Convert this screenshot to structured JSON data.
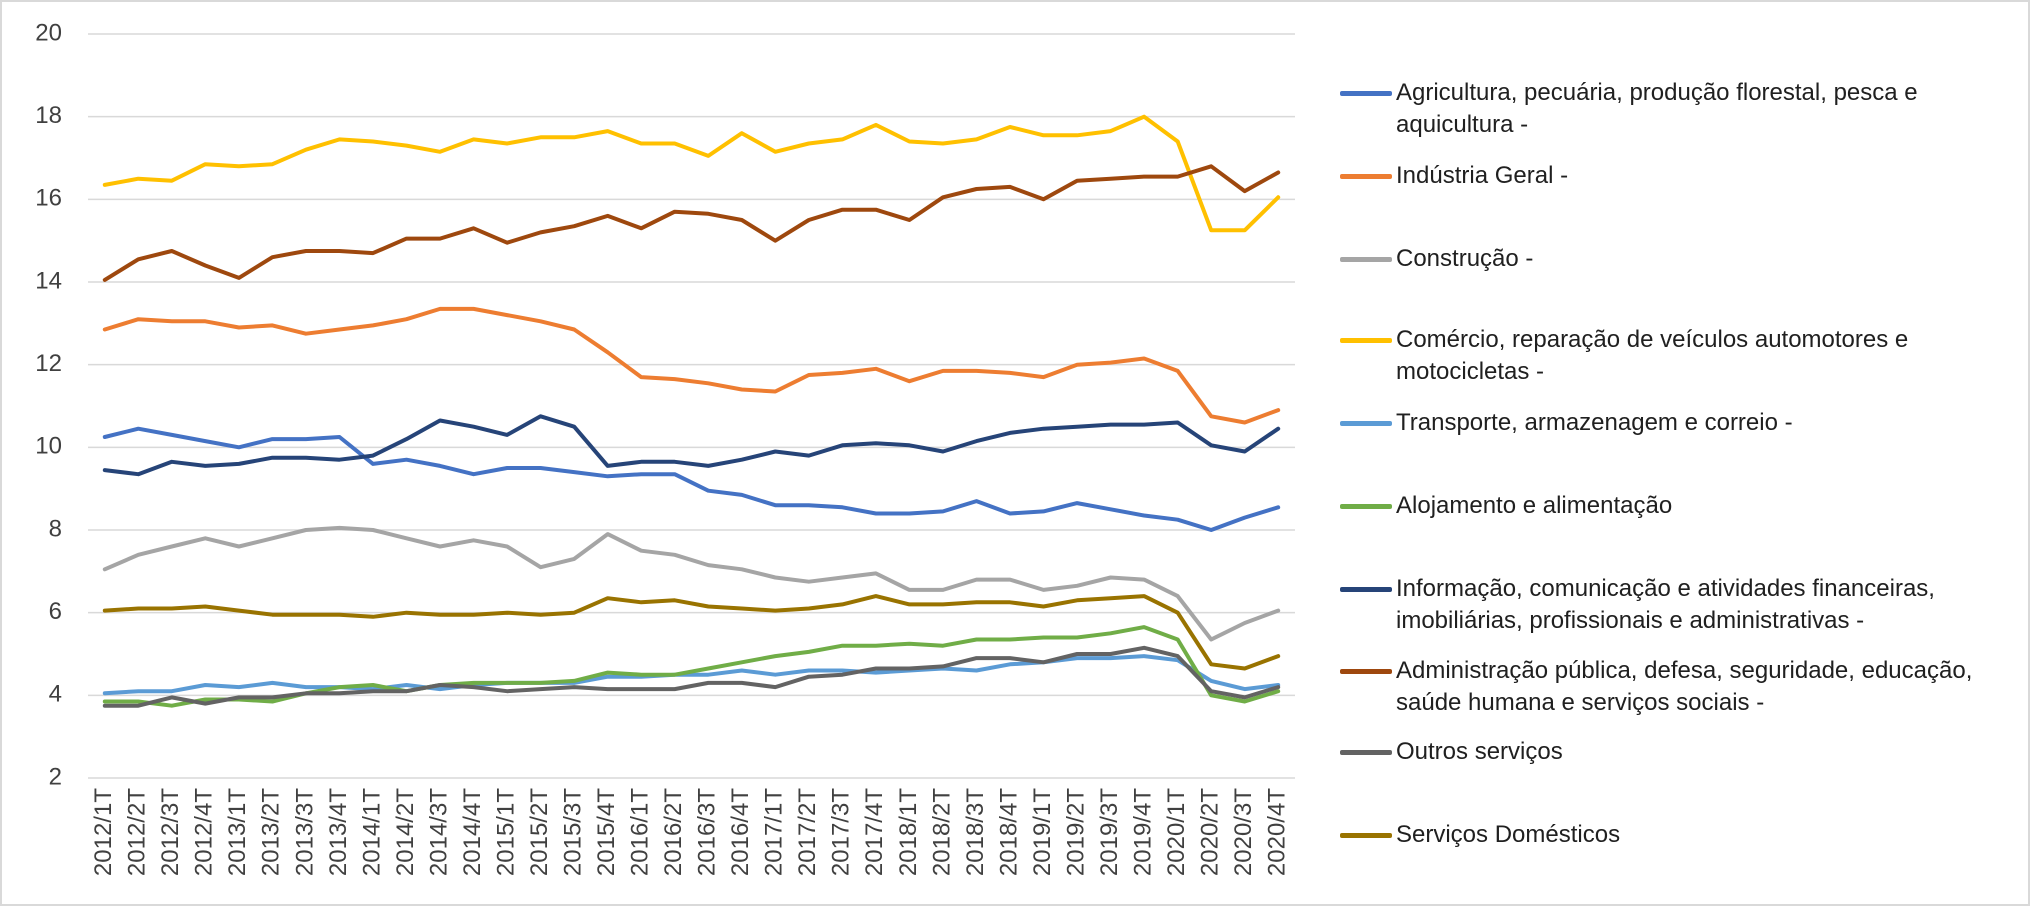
{
  "chart_data": {
    "type": "line",
    "categories": [
      "2012/1T",
      "2012/2T",
      "2012/3T",
      "2012/4T",
      "2013/1T",
      "2013/2T",
      "2013/3T",
      "2013/4T",
      "2014/1T",
      "2014/2T",
      "2014/3T",
      "2014/4T",
      "2015/1T",
      "2015/2T",
      "2015/3T",
      "2015/4T",
      "2016/1T",
      "2016/2T",
      "2016/3T",
      "2016/4T",
      "2017/1T",
      "2017/2T",
      "2017/3T",
      "2017/4T",
      "2018/1T",
      "2018/2T",
      "2018/3T",
      "2018/4T",
      "2019/1T",
      "2019/2T",
      "2019/3T",
      "2019/4T",
      "2020/1T",
      "2020/2T",
      "2020/3T",
      "2020/4T"
    ],
    "ylim": [
      2,
      20
    ],
    "yticks": [
      2,
      4,
      6,
      8,
      10,
      12,
      14,
      16,
      18,
      20
    ],
    "grid": true,
    "series": [
      {
        "name": "Agricultura, pecuária, produção florestal, pesca e aquicultura -",
        "color": "#4472c4",
        "values": [
          10.25,
          10.45,
          10.3,
          10.15,
          10.0,
          10.2,
          10.2,
          10.25,
          9.6,
          9.7,
          9.55,
          9.35,
          9.5,
          9.5,
          9.4,
          9.3,
          9.35,
          9.35,
          8.95,
          8.85,
          8.6,
          8.6,
          8.55,
          8.4,
          8.4,
          8.45,
          8.7,
          8.4,
          8.45,
          8.65,
          8.5,
          8.35,
          8.25,
          8.0,
          8.3,
          8.55
        ]
      },
      {
        "name": "Indústria Geral -",
        "color": "#ed7d31",
        "values": [
          12.85,
          13.1,
          13.05,
          13.05,
          12.9,
          12.95,
          12.75,
          12.85,
          12.95,
          13.1,
          13.35,
          13.35,
          13.2,
          13.05,
          12.85,
          12.3,
          11.7,
          11.65,
          11.55,
          11.4,
          11.35,
          11.75,
          11.8,
          11.9,
          11.6,
          11.85,
          11.85,
          11.8,
          11.7,
          12.0,
          12.05,
          12.15,
          11.85,
          10.75,
          10.6,
          10.9
        ]
      },
      {
        "name": "Construção -",
        "color": "#a5a5a5",
        "values": [
          7.05,
          7.4,
          7.6,
          7.8,
          7.6,
          7.8,
          8.0,
          8.05,
          8.0,
          7.8,
          7.6,
          7.75,
          7.6,
          7.1,
          7.3,
          7.9,
          7.5,
          7.4,
          7.15,
          7.05,
          6.85,
          6.75,
          6.85,
          6.95,
          6.55,
          6.55,
          6.8,
          6.8,
          6.55,
          6.65,
          6.85,
          6.8,
          6.4,
          5.35,
          5.75,
          6.05
        ]
      },
      {
        "name": "Comércio, reparação de veículos automotores e motocicletas -",
        "color": "#ffc000",
        "values": [
          16.35,
          16.5,
          16.45,
          16.85,
          16.8,
          16.85,
          17.2,
          17.45,
          17.4,
          17.3,
          17.15,
          17.45,
          17.35,
          17.5,
          17.5,
          17.65,
          17.35,
          17.35,
          17.05,
          17.6,
          17.15,
          17.35,
          17.45,
          17.8,
          17.4,
          17.35,
          17.45,
          17.75,
          17.55,
          17.55,
          17.65,
          18.0,
          17.4,
          15.25,
          15.25,
          16.05
        ]
      },
      {
        "name": "Transporte, armazenagem e correio -",
        "color": "#5b9bd5",
        "values": [
          4.05,
          4.1,
          4.1,
          4.25,
          4.2,
          4.3,
          4.2,
          4.2,
          4.15,
          4.25,
          4.15,
          4.25,
          4.3,
          4.3,
          4.3,
          4.45,
          4.45,
          4.5,
          4.5,
          4.6,
          4.5,
          4.6,
          4.6,
          4.55,
          4.6,
          4.65,
          4.6,
          4.75,
          4.8,
          4.9,
          4.9,
          4.95,
          4.85,
          4.35,
          4.15,
          4.25
        ]
      },
      {
        "name": "Alojamento e alimentação",
        "color": "#70ad47",
        "values": [
          3.85,
          3.85,
          3.75,
          3.9,
          3.9,
          3.85,
          4.05,
          4.2,
          4.25,
          4.1,
          4.25,
          4.3,
          4.3,
          4.3,
          4.35,
          4.55,
          4.5,
          4.5,
          4.65,
          4.8,
          4.95,
          5.05,
          5.2,
          5.2,
          5.25,
          5.2,
          5.35,
          5.35,
          5.4,
          5.4,
          5.5,
          5.65,
          5.35,
          4.0,
          3.85,
          4.1
        ]
      },
      {
        "name": "Informação, comunicação e atividades financeiras, imobiliárias, profissionais e administrativas -",
        "color": "#264478",
        "values": [
          9.45,
          9.35,
          9.65,
          9.55,
          9.6,
          9.75,
          9.75,
          9.7,
          9.8,
          10.2,
          10.65,
          10.5,
          10.3,
          10.75,
          10.5,
          9.55,
          9.65,
          9.65,
          9.55,
          9.7,
          9.9,
          9.8,
          10.05,
          10.1,
          10.05,
          9.9,
          10.15,
          10.35,
          10.45,
          10.5,
          10.55,
          10.55,
          10.6,
          10.05,
          9.9,
          10.45
        ]
      },
      {
        "name": "Administração pública, defesa, seguridade, educação, saúde humana e serviços sociais  -",
        "color": "#9e480e",
        "values": [
          14.05,
          14.55,
          14.75,
          14.4,
          14.1,
          14.6,
          14.75,
          14.75,
          14.7,
          15.05,
          15.05,
          15.3,
          14.95,
          15.2,
          15.35,
          15.6,
          15.3,
          15.7,
          15.65,
          15.5,
          15.0,
          15.5,
          15.75,
          15.75,
          15.5,
          16.05,
          16.25,
          16.3,
          16.0,
          16.45,
          16.5,
          16.55,
          16.55,
          16.8,
          16.2,
          16.65
        ]
      },
      {
        "name": "Outros serviços",
        "color": "#636363",
        "values": [
          3.75,
          3.75,
          3.95,
          3.8,
          3.95,
          3.95,
          4.05,
          4.05,
          4.1,
          4.1,
          4.25,
          4.2,
          4.1,
          4.15,
          4.2,
          4.15,
          4.15,
          4.15,
          4.3,
          4.3,
          4.2,
          4.45,
          4.5,
          4.65,
          4.65,
          4.7,
          4.9,
          4.9,
          4.8,
          5.0,
          5.0,
          5.15,
          4.95,
          4.1,
          3.95,
          4.2
        ]
      },
      {
        "name": "Serviços Domésticos",
        "color": "#997300",
        "values": [
          6.05,
          6.1,
          6.1,
          6.15,
          6.05,
          5.95,
          5.95,
          5.95,
          5.9,
          6.0,
          5.95,
          5.95,
          6.0,
          5.95,
          6.0,
          6.35,
          6.25,
          6.3,
          6.15,
          6.1,
          6.05,
          6.1,
          6.2,
          6.4,
          6.2,
          6.2,
          6.25,
          6.25,
          6.15,
          6.3,
          6.35,
          6.4,
          6.0,
          4.75,
          4.65,
          4.95
        ]
      }
    ]
  }
}
